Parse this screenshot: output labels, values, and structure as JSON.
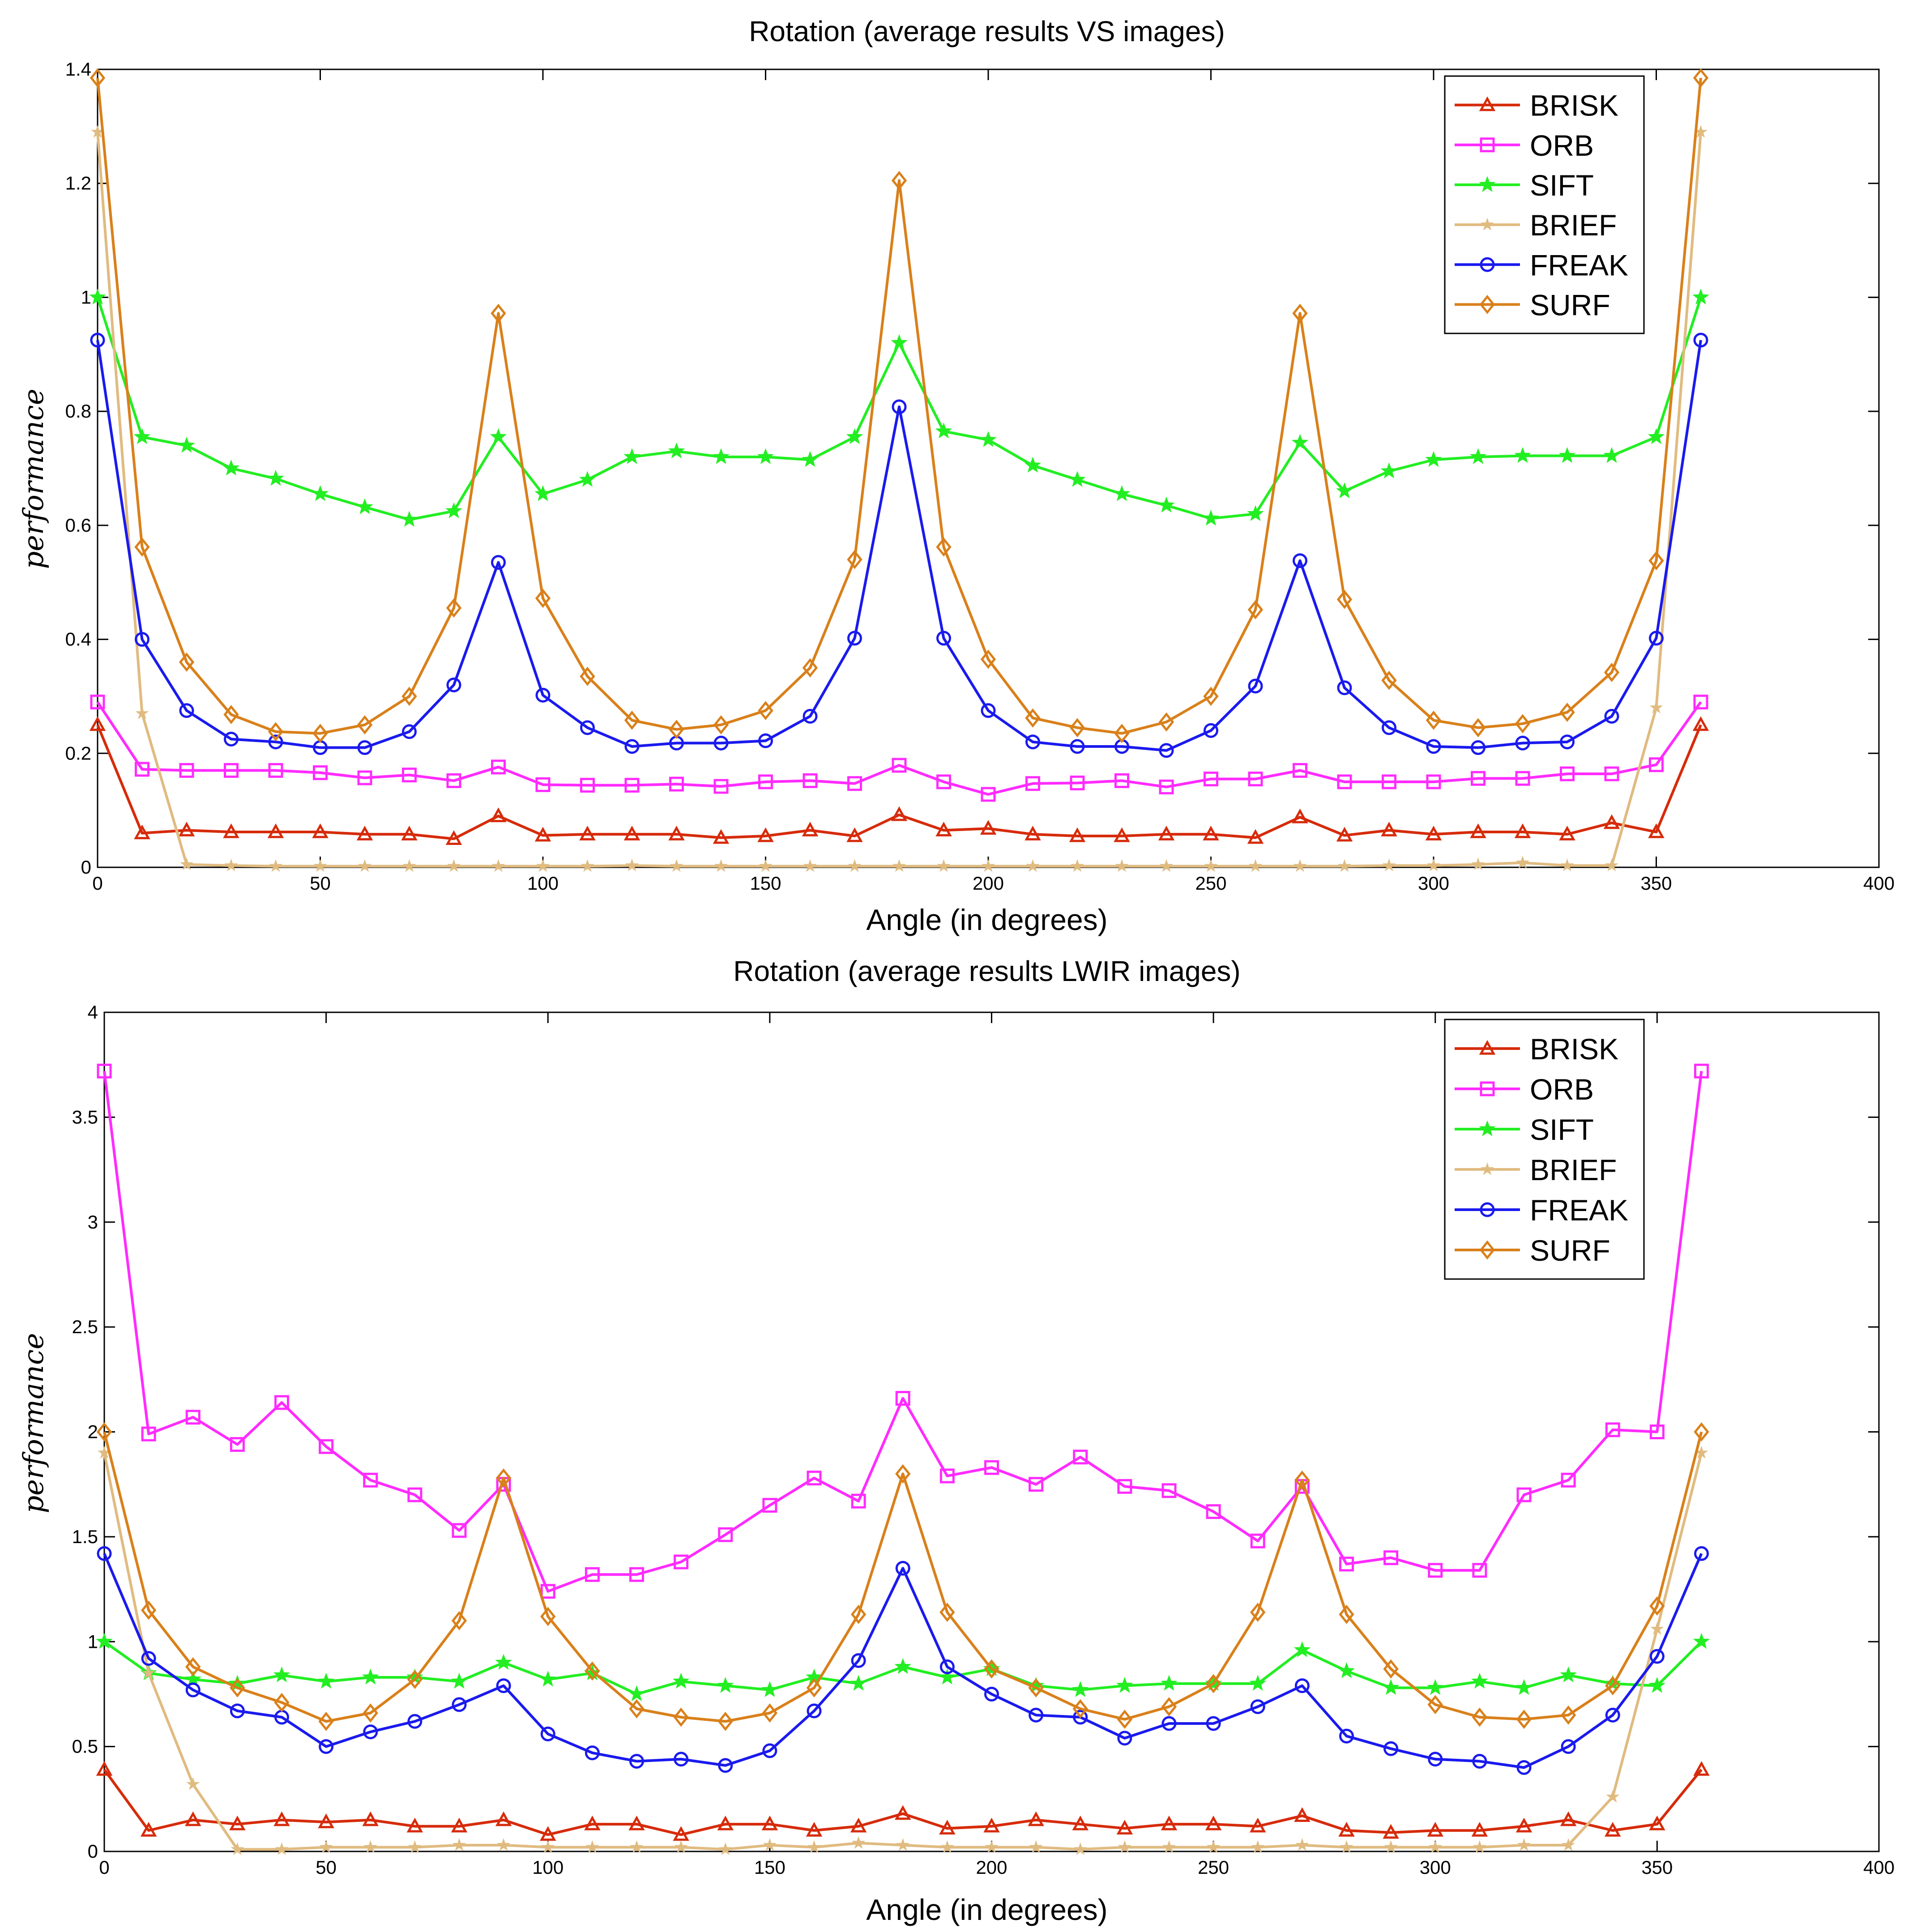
{
  "chart_data": [
    {
      "type": "line",
      "title": "Rotation (average results VS images)",
      "xlabel": "Angle (in degrees)",
      "ylabel": "performance",
      "xlim": [
        0,
        400
      ],
      "ylim": [
        0,
        1.4
      ],
      "xticks": [
        0,
        50,
        100,
        150,
        200,
        250,
        300,
        350,
        400
      ],
      "yticks": [
        0,
        0.2,
        0.4,
        0.6,
        0.8,
        1,
        1.2,
        1.4
      ],
      "ytick_labels": [
        "0",
        "0.2",
        "0.4",
        "0.6",
        "0.8",
        "1",
        "1.2",
        "1.4"
      ],
      "grid": false,
      "legend_position": "top-right",
      "x": [
        0,
        10,
        20,
        30,
        40,
        50,
        60,
        70,
        80,
        90,
        100,
        110,
        120,
        130,
        140,
        150,
        160,
        170,
        180,
        190,
        200,
        210,
        220,
        230,
        240,
        250,
        260,
        270,
        280,
        290,
        300,
        310,
        320,
        330,
        340,
        350,
        360
      ],
      "series": [
        {
          "name": "BRISK",
          "color": "#d62b0a",
          "marker": "triangle",
          "values": [
            0.25,
            0.06,
            0.065,
            0.062,
            0.062,
            0.062,
            0.058,
            0.058,
            0.05,
            0.09,
            0.056,
            0.058,
            0.058,
            0.058,
            0.052,
            0.055,
            0.065,
            0.055,
            0.092,
            0.065,
            0.068,
            0.058,
            0.055,
            0.055,
            0.058,
            0.058,
            0.052,
            0.088,
            0.056,
            0.065,
            0.058,
            0.062,
            0.062,
            0.058,
            0.078,
            0.062,
            0.25
          ]
        },
        {
          "name": "ORB",
          "color": "#ff2bff",
          "marker": "square",
          "values": [
            0.29,
            0.172,
            0.17,
            0.17,
            0.17,
            0.166,
            0.157,
            0.162,
            0.152,
            0.176,
            0.145,
            0.144,
            0.144,
            0.146,
            0.142,
            0.15,
            0.152,
            0.147,
            0.179,
            0.15,
            0.128,
            0.147,
            0.148,
            0.152,
            0.141,
            0.155,
            0.155,
            0.17,
            0.15,
            0.15,
            0.15,
            0.156,
            0.156,
            0.164,
            0.164,
            0.18,
            0.29
          ]
        },
        {
          "name": "SIFT",
          "color": "#22ee22",
          "marker": "star",
          "values": [
            1.0,
            0.755,
            0.74,
            0.7,
            0.682,
            0.655,
            0.632,
            0.61,
            0.625,
            0.755,
            0.655,
            0.68,
            0.72,
            0.73,
            0.72,
            0.72,
            0.715,
            0.755,
            0.92,
            0.765,
            0.75,
            0.705,
            0.68,
            0.655,
            0.635,
            0.612,
            0.62,
            0.745,
            0.66,
            0.695,
            0.715,
            0.72,
            0.722,
            0.722,
            0.722,
            0.755,
            1.0
          ]
        },
        {
          "name": "BRIEF",
          "color": "#e0bb80",
          "marker": "plus",
          "values": [
            1.29,
            0.27,
            0.005,
            0.003,
            0.002,
            0.002,
            0.002,
            0.002,
            0.002,
            0.002,
            0.002,
            0.002,
            0.003,
            0.002,
            0.002,
            0.002,
            0.002,
            0.002,
            0.002,
            0.002,
            0.002,
            0.002,
            0.002,
            0.002,
            0.002,
            0.002,
            0.002,
            0.002,
            0.002,
            0.003,
            0.003,
            0.005,
            0.008,
            0.003,
            0.003,
            0.28,
            1.29
          ]
        },
        {
          "name": "FREAK",
          "color": "#1a1aee",
          "marker": "circle",
          "values": [
            0.925,
            0.4,
            0.275,
            0.225,
            0.22,
            0.21,
            0.21,
            0.238,
            0.32,
            0.535,
            0.302,
            0.245,
            0.212,
            0.218,
            0.218,
            0.222,
            0.265,
            0.402,
            0.808,
            0.402,
            0.275,
            0.22,
            0.212,
            0.212,
            0.205,
            0.24,
            0.318,
            0.538,
            0.315,
            0.245,
            0.212,
            0.21,
            0.218,
            0.22,
            0.265,
            0.402,
            0.925
          ]
        },
        {
          "name": "SURF",
          "color": "#d9801a",
          "marker": "diamond",
          "values": [
            1.385,
            0.562,
            0.36,
            0.268,
            0.238,
            0.235,
            0.25,
            0.3,
            0.455,
            0.972,
            0.472,
            0.335,
            0.258,
            0.242,
            0.25,
            0.275,
            0.35,
            0.54,
            1.205,
            0.562,
            0.365,
            0.262,
            0.245,
            0.235,
            0.255,
            0.3,
            0.452,
            0.972,
            0.47,
            0.328,
            0.258,
            0.245,
            0.252,
            0.272,
            0.342,
            0.538,
            1.385
          ]
        }
      ]
    },
    {
      "type": "line",
      "title": "Rotation (average results LWIR images)",
      "xlabel": "Angle (in degrees)",
      "ylabel": "performance",
      "xlim": [
        0,
        400
      ],
      "ylim": [
        0,
        4
      ],
      "xticks": [
        0,
        50,
        100,
        150,
        200,
        250,
        300,
        350,
        400
      ],
      "yticks": [
        0,
        0.5,
        1,
        1.5,
        2,
        2.5,
        3,
        3.5,
        4
      ],
      "ytick_labels": [
        "0",
        "0.5",
        "1",
        "1.5",
        "2",
        "2.5",
        "3",
        "3.5",
        "4"
      ],
      "grid": false,
      "legend_position": "top-right",
      "x": [
        0,
        10,
        20,
        30,
        40,
        50,
        60,
        70,
        80,
        90,
        100,
        110,
        120,
        130,
        140,
        150,
        160,
        170,
        180,
        190,
        200,
        210,
        220,
        230,
        240,
        250,
        260,
        270,
        280,
        290,
        300,
        310,
        320,
        330,
        340,
        350,
        360
      ],
      "series": [
        {
          "name": "BRISK",
          "color": "#d62b0a",
          "marker": "triangle",
          "values": [
            0.39,
            0.1,
            0.15,
            0.13,
            0.15,
            0.14,
            0.15,
            0.12,
            0.12,
            0.15,
            0.08,
            0.13,
            0.13,
            0.08,
            0.13,
            0.13,
            0.1,
            0.12,
            0.18,
            0.11,
            0.12,
            0.15,
            0.13,
            0.11,
            0.13,
            0.13,
            0.12,
            0.17,
            0.1,
            0.09,
            0.1,
            0.1,
            0.12,
            0.15,
            0.1,
            0.13,
            0.39
          ]
        },
        {
          "name": "ORB",
          "color": "#ff2bff",
          "marker": "square",
          "values": [
            3.72,
            1.99,
            2.07,
            1.94,
            2.14,
            1.93,
            1.77,
            1.7,
            1.53,
            1.75,
            1.24,
            1.32,
            1.32,
            1.38,
            1.51,
            1.65,
            1.78,
            1.67,
            2.16,
            1.79,
            1.83,
            1.75,
            1.88,
            1.74,
            1.72,
            1.62,
            1.48,
            1.74,
            1.37,
            1.4,
            1.34,
            1.34,
            1.7,
            1.77,
            2.01,
            2.0,
            3.72
          ]
        },
        {
          "name": "SIFT",
          "color": "#22ee22",
          "marker": "star",
          "values": [
            1.0,
            0.85,
            0.82,
            0.8,
            0.84,
            0.81,
            0.83,
            0.83,
            0.81,
            0.9,
            0.82,
            0.85,
            0.75,
            0.81,
            0.79,
            0.77,
            0.83,
            0.8,
            0.88,
            0.83,
            0.87,
            0.79,
            0.77,
            0.79,
            0.8,
            0.8,
            0.8,
            0.96,
            0.86,
            0.78,
            0.78,
            0.81,
            0.78,
            0.84,
            0.8,
            0.79,
            1.0
          ]
        },
        {
          "name": "BRIEF",
          "color": "#e0bb80",
          "marker": "plus",
          "values": [
            1.9,
            0.85,
            0.32,
            0.01,
            0.01,
            0.02,
            0.02,
            0.02,
            0.03,
            0.03,
            0.02,
            0.02,
            0.02,
            0.02,
            0.01,
            0.03,
            0.02,
            0.04,
            0.03,
            0.02,
            0.02,
            0.02,
            0.01,
            0.02,
            0.02,
            0.02,
            0.02,
            0.03,
            0.02,
            0.02,
            0.02,
            0.02,
            0.03,
            0.03,
            0.26,
            1.06,
            1.9
          ]
        },
        {
          "name": "FREAK",
          "color": "#1a1aee",
          "marker": "circle",
          "values": [
            1.42,
            0.92,
            0.77,
            0.67,
            0.64,
            0.5,
            0.57,
            0.62,
            0.7,
            0.79,
            0.56,
            0.47,
            0.43,
            0.44,
            0.41,
            0.48,
            0.67,
            0.91,
            1.35,
            0.88,
            0.75,
            0.65,
            0.64,
            0.54,
            0.61,
            0.61,
            0.69,
            0.79,
            0.55,
            0.49,
            0.44,
            0.43,
            0.4,
            0.5,
            0.65,
            0.93,
            1.42
          ]
        },
        {
          "name": "SURF",
          "color": "#d9801a",
          "marker": "diamond",
          "values": [
            2.0,
            1.15,
            0.88,
            0.78,
            0.71,
            0.62,
            0.66,
            0.82,
            1.1,
            1.78,
            1.12,
            0.86,
            0.68,
            0.64,
            0.62,
            0.66,
            0.78,
            1.13,
            1.8,
            1.14,
            0.87,
            0.78,
            0.68,
            0.63,
            0.69,
            0.8,
            1.14,
            1.77,
            1.13,
            0.87,
            0.7,
            0.64,
            0.63,
            0.65,
            0.79,
            1.17,
            2.0
          ]
        }
      ]
    }
  ]
}
